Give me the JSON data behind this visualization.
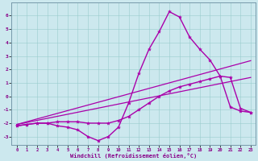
{
  "xlabel": "Windchill (Refroidissement éolien,°C)",
  "bg_color": "#cce8ee",
  "line_color": "#aa00aa",
  "xlim": [
    -0.5,
    23.5
  ],
  "ylim": [
    -3.6,
    7.0
  ],
  "xticks": [
    0,
    1,
    2,
    3,
    4,
    5,
    6,
    7,
    8,
    9,
    10,
    11,
    12,
    13,
    14,
    15,
    16,
    17,
    18,
    19,
    20,
    21,
    22,
    23
  ],
  "yticks": [
    -3,
    -2,
    -1,
    0,
    1,
    2,
    3,
    4,
    5,
    6
  ],
  "lines": [
    {
      "x": [
        0,
        1,
        2,
        3,
        4,
        5,
        6,
        7,
        8,
        9,
        10,
        11,
        12,
        13,
        14,
        15,
        16,
        17,
        18,
        19,
        20,
        21,
        22,
        23
      ],
      "y": [
        -2.2,
        -2.1,
        -2.0,
        -2.0,
        -2.2,
        -2.3,
        -2.5,
        -3.0,
        -3.3,
        -3.0,
        -2.3,
        -0.5,
        1.7,
        3.5,
        4.8,
        6.3,
        5.9,
        4.4,
        3.5,
        2.7,
        1.5,
        -0.8,
        -1.1,
        -1.2
      ],
      "marker": true,
      "lw": 1.0
    },
    {
      "x": [
        0,
        1,
        2,
        3,
        4,
        5,
        6,
        7,
        8,
        9,
        10,
        11,
        12,
        13,
        14,
        15,
        16,
        17,
        18,
        19,
        20,
        21,
        22,
        23
      ],
      "y": [
        -2.2,
        -2.1,
        -2.0,
        -2.0,
        -1.9,
        -1.9,
        -1.9,
        -2.0,
        -2.0,
        -2.0,
        -1.8,
        -1.5,
        -1.0,
        -0.5,
        0.0,
        0.4,
        0.7,
        0.9,
        1.1,
        1.3,
        1.5,
        1.4,
        -0.9,
        -1.2
      ],
      "marker": true,
      "lw": 1.0
    },
    {
      "x": [
        0,
        23
      ],
      "y": [
        -2.1,
        2.65
      ],
      "marker": false,
      "lw": 0.9
    },
    {
      "x": [
        0,
        23
      ],
      "y": [
        -2.1,
        1.4
      ],
      "marker": false,
      "lw": 0.9
    }
  ]
}
